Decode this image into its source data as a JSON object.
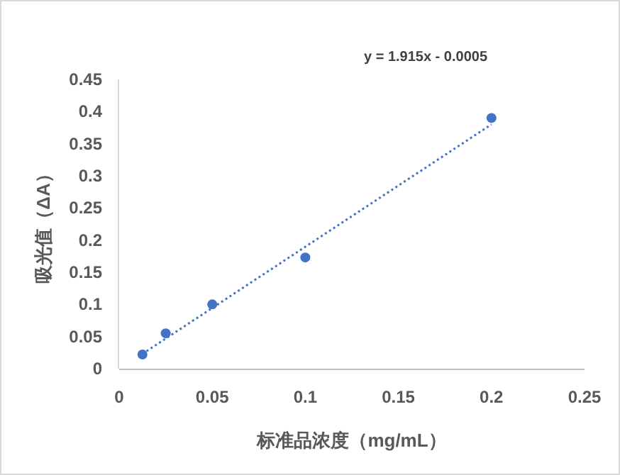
{
  "chart_data": {
    "type": "scatter",
    "xlabel": "标准品浓度（mg/mL）",
    "ylabel": "吸光值（ΔA）",
    "annotations": [
      "y = 1.915x - 0.0005"
    ],
    "xlim": [
      0,
      0.25
    ],
    "xticks": [
      0,
      0.05,
      0.1,
      0.15,
      0.2,
      0.25
    ],
    "ylim": [
      0,
      0.45
    ],
    "yticks": [
      0,
      0.05,
      0.1,
      0.15,
      0.2,
      0.25,
      0.3,
      0.35,
      0.4,
      0.45
    ],
    "grid": false,
    "series": [
      {
        "color": "#4472c4",
        "marker": "circle",
        "x": [
          0.0125,
          0.025,
          0.05,
          0.1,
          0.2
        ],
        "values": [
          0.022,
          0.055,
          0.1,
          0.173,
          0.39
        ]
      },
      {
        "type": "line",
        "color": "#4472c4",
        "line_style": "dotted",
        "marker": "none",
        "x": [
          0.0125,
          0.2
        ],
        "values": [
          0.023,
          0.38
        ]
      }
    ]
  }
}
